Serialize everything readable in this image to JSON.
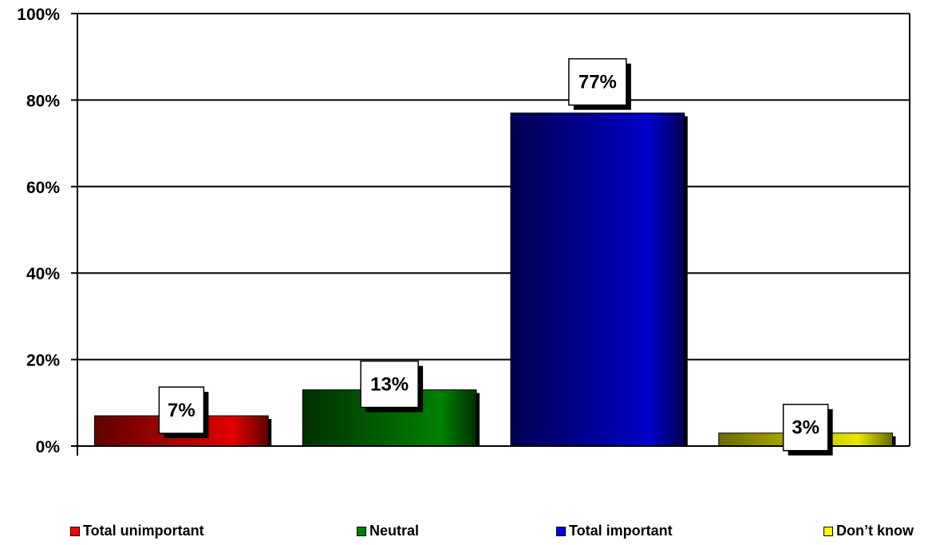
{
  "chart_data": {
    "type": "bar",
    "categories": [
      "Total unimportant",
      "Neutral",
      "Total important",
      "Don’t know"
    ],
    "values": [
      7,
      13,
      77,
      3
    ],
    "data_labels": [
      "7%",
      "13%",
      "77%",
      "3%"
    ],
    "colors": [
      "#e00000",
      "#008000",
      "#0000c8",
      "#e8e800"
    ],
    "dark_colors": [
      "#600000",
      "#003000",
      "#000050",
      "#6a6a00"
    ],
    "ylim": [
      0,
      100
    ],
    "yticks": [
      0,
      20,
      40,
      60,
      80,
      100
    ],
    "ytick_labels": [
      "0%",
      "20%",
      "40%",
      "60%",
      "80%",
      "100%"
    ],
    "grid": true,
    "legend_position": "bottom",
    "title": "",
    "xlabel": "",
    "ylabel": ""
  },
  "legend": {
    "items": [
      {
        "label": "Total unimportant",
        "color": "#ff0000"
      },
      {
        "label": "Neutral",
        "color": "#008000"
      },
      {
        "label": "Total important",
        "color": "#0000ff"
      },
      {
        "label": "Don’t know",
        "color": "#ffff00"
      }
    ]
  }
}
